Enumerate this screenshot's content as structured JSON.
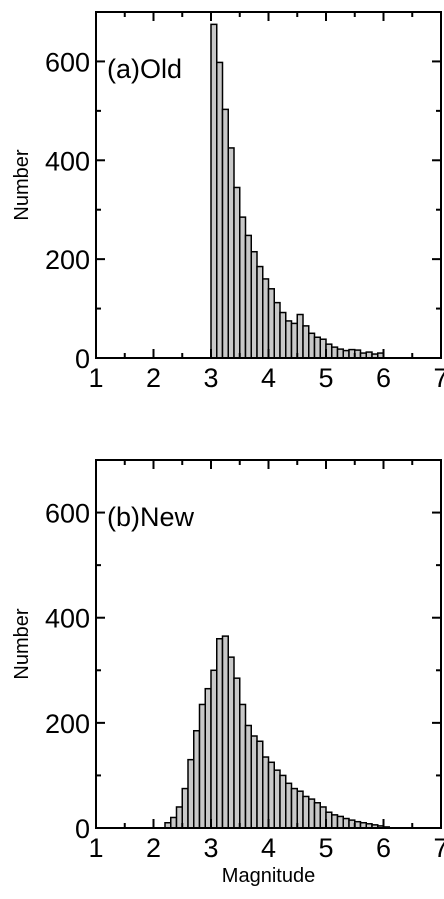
{
  "colors": {
    "bar_fill": "#c8c8c8",
    "bar_stroke": "#000000",
    "axis": "#000000",
    "background": "#ffffff"
  },
  "chart_data": [
    {
      "type": "bar",
      "panel_label": "(a)Old",
      "xlabel": "",
      "ylabel": "Number",
      "xlim": [
        1,
        7
      ],
      "ylim": [
        0,
        700
      ],
      "x_ticks": [
        "1",
        "2",
        "3",
        "4",
        "5",
        "6",
        "7"
      ],
      "y_ticks": [
        "0",
        "200",
        "400",
        "600"
      ],
      "bin_width": 0.1,
      "bin_starts": [
        3.0,
        3.1,
        3.2,
        3.3,
        3.4,
        3.5,
        3.6,
        3.7,
        3.8,
        3.9,
        4.0,
        4.1,
        4.2,
        4.3,
        4.4,
        4.5,
        4.6,
        4.7,
        4.8,
        4.9,
        5.0,
        5.1,
        5.2,
        5.3,
        5.4,
        5.5,
        5.6,
        5.7,
        5.8,
        5.9
      ],
      "values": [
        675,
        598,
        503,
        425,
        345,
        285,
        248,
        215,
        185,
        160,
        140,
        112,
        92,
        75,
        70,
        88,
        65,
        50,
        42,
        38,
        28,
        22,
        18,
        15,
        17,
        16,
        10,
        12,
        8,
        10
      ],
      "grid": false
    },
    {
      "type": "bar",
      "panel_label": "(b)New",
      "xlabel": "Magnitude",
      "ylabel": "Number",
      "xlim": [
        1,
        7
      ],
      "ylim": [
        0,
        700
      ],
      "x_ticks": [
        "1",
        "2",
        "3",
        "4",
        "5",
        "6",
        "7"
      ],
      "y_ticks": [
        "0",
        "200",
        "400",
        "600"
      ],
      "bin_width": 0.1,
      "bin_starts": [
        2.2,
        2.3,
        2.4,
        2.5,
        2.6,
        2.7,
        2.8,
        2.9,
        3.0,
        3.1,
        3.2,
        3.3,
        3.4,
        3.5,
        3.6,
        3.7,
        3.8,
        3.9,
        4.0,
        4.1,
        4.2,
        4.3,
        4.4,
        4.5,
        4.6,
        4.7,
        4.8,
        4.9,
        5.0,
        5.1,
        5.2,
        5.3,
        5.4,
        5.5,
        5.6,
        5.7,
        5.8,
        5.9,
        6.0
      ],
      "values": [
        10,
        20,
        40,
        75,
        130,
        185,
        235,
        265,
        300,
        360,
        365,
        325,
        285,
        235,
        195,
        175,
        165,
        135,
        125,
        110,
        100,
        85,
        75,
        70,
        60,
        55,
        48,
        40,
        30,
        25,
        22,
        18,
        15,
        12,
        10,
        8,
        6,
        4,
        2
      ],
      "grid": false
    }
  ]
}
